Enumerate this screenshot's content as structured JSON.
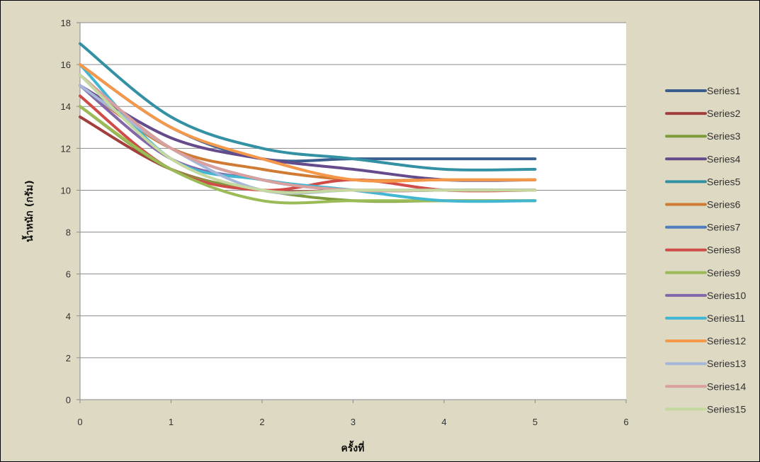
{
  "chart_data": {
    "type": "line",
    "title": "",
    "xlabel": "ครั้งที่",
    "ylabel": "น้ำหนัก (กรัม)",
    "xlim": [
      0,
      6
    ],
    "ylim": [
      0,
      18
    ],
    "xticks": [
      0,
      1,
      2,
      3,
      4,
      5,
      6
    ],
    "yticks": [
      0,
      2,
      4,
      6,
      8,
      10,
      12,
      14,
      16,
      18
    ],
    "grid": "horizontal",
    "smooth": true,
    "legend_position": "right",
    "x": [
      0,
      1,
      2,
      3,
      4,
      5
    ],
    "series": [
      {
        "name": "Series1",
        "color": "#3a5f8f",
        "values": [
          16,
          13,
          11.5,
          11.5,
          11.5,
          11.5
        ]
      },
      {
        "name": "Series2",
        "color": "#a23f3c",
        "values": [
          13.5,
          11,
          10,
          10,
          10,
          10
        ]
      },
      {
        "name": "Series3",
        "color": "#7f9c3d",
        "values": [
          14,
          11,
          10,
          9.5,
          9.5,
          9.5
        ]
      },
      {
        "name": "Series4",
        "color": "#664b8c",
        "values": [
          15,
          12.5,
          11.5,
          11,
          10.5,
          10.5
        ]
      },
      {
        "name": "Series5",
        "color": "#3391a3",
        "values": [
          17,
          13.5,
          12,
          11.5,
          11,
          11
        ]
      },
      {
        "name": "Series6",
        "color": "#d07b34",
        "values": [
          15,
          12,
          11,
          10.5,
          10.5,
          10.5
        ]
      },
      {
        "name": "Series7",
        "color": "#4c7dbf",
        "values": [
          15.5,
          12,
          10.5,
          10,
          10,
          10
        ]
      },
      {
        "name": "Series8",
        "color": "#cf4c48",
        "values": [
          14.5,
          11,
          10,
          10.5,
          10,
          10
        ]
      },
      {
        "name": "Series9",
        "color": "#9abb56",
        "values": [
          14,
          11,
          9.5,
          9.5,
          9.5,
          9.5
        ]
      },
      {
        "name": "Series10",
        "color": "#8367a8",
        "values": [
          15,
          11.5,
          10.5,
          10,
          10,
          10
        ]
      },
      {
        "name": "Series11",
        "color": "#43b7d1",
        "values": [
          16,
          11.5,
          10.5,
          10,
          9.5,
          9.5
        ]
      },
      {
        "name": "Series12",
        "color": "#f6984a",
        "values": [
          16,
          13,
          11.5,
          10.5,
          10.5,
          10.5
        ]
      },
      {
        "name": "Series13",
        "color": "#a6b8d9",
        "values": [
          15,
          12,
          10,
          10,
          10,
          10
        ]
      },
      {
        "name": "Series14",
        "color": "#d9a09e",
        "values": [
          15.5,
          12,
          10.5,
          10,
          10,
          10
        ]
      },
      {
        "name": "Series15",
        "color": "#c4d8a0",
        "values": [
          15.5,
          11.5,
          10,
          10,
          10,
          10
        ]
      }
    ]
  }
}
